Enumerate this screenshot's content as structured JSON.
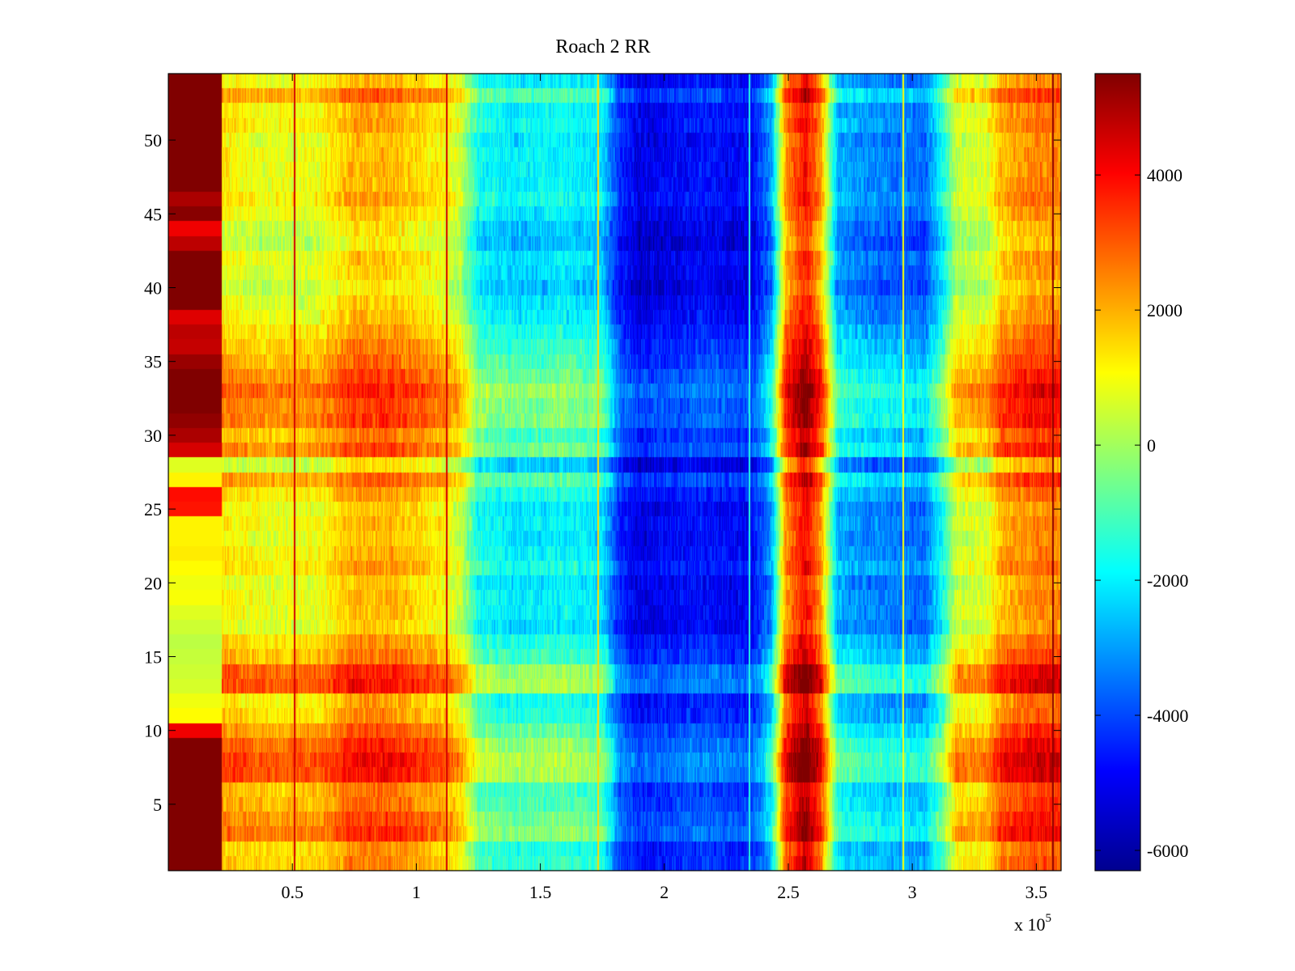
{
  "chart_data": {
    "type": "heatmap",
    "title": "Roach 2 RR",
    "colormap": "jet",
    "x_range": [
      0,
      360000
    ],
    "y_range": [
      0.5,
      54.5
    ],
    "x_ticks": [
      {
        "value": 50000,
        "label": "0.5"
      },
      {
        "value": 100000,
        "label": "1"
      },
      {
        "value": 150000,
        "label": "1.5"
      },
      {
        "value": 200000,
        "label": "2"
      },
      {
        "value": 250000,
        "label": "2.5"
      },
      {
        "value": 300000,
        "label": "3"
      },
      {
        "value": 350000,
        "label": "3.5"
      }
    ],
    "x_multiplier": {
      "base": "x 10",
      "exponent": "5"
    },
    "y_ticks": [
      {
        "value": 5,
        "label": "5"
      },
      {
        "value": 10,
        "label": "10"
      },
      {
        "value": 15,
        "label": "15"
      },
      {
        "value": 20,
        "label": "20"
      },
      {
        "value": 25,
        "label": "25"
      },
      {
        "value": 30,
        "label": "30"
      },
      {
        "value": 35,
        "label": "35"
      },
      {
        "value": 40,
        "label": "40"
      },
      {
        "value": 45,
        "label": "45"
      },
      {
        "value": 50,
        "label": "50"
      }
    ],
    "colorbar": {
      "range": [
        -6300,
        5500
      ],
      "ticks": [
        {
          "value": 4000,
          "label": "4000"
        },
        {
          "value": 2000,
          "label": "2000"
        },
        {
          "value": 0,
          "label": "0"
        },
        {
          "value": -2000,
          "label": "-2000"
        },
        {
          "value": -4000,
          "label": "-4000"
        },
        {
          "value": -6000,
          "label": "-6000"
        }
      ]
    },
    "rows": 54,
    "column_profile": [
      {
        "x": 0,
        "value": 6000
      },
      {
        "x": 21000,
        "value": 6000
      },
      {
        "x": 21500,
        "value": 1400
      },
      {
        "x": 40000,
        "value": 1000
      },
      {
        "x": 60000,
        "value": 1100
      },
      {
        "x": 75000,
        "value": 2100
      },
      {
        "x": 90000,
        "value": 2100
      },
      {
        "x": 110000,
        "value": 1300
      },
      {
        "x": 118000,
        "value": 600
      },
      {
        "x": 125000,
        "value": -1500
      },
      {
        "x": 140000,
        "value": -1900
      },
      {
        "x": 160000,
        "value": -1700
      },
      {
        "x": 175000,
        "value": -2000
      },
      {
        "x": 182000,
        "value": -4300
      },
      {
        "x": 190000,
        "value": -5000
      },
      {
        "x": 215000,
        "value": -4500
      },
      {
        "x": 235000,
        "value": -4800
      },
      {
        "x": 243000,
        "value": -3000
      },
      {
        "x": 249000,
        "value": 2500
      },
      {
        "x": 257000,
        "value": 4200
      },
      {
        "x": 263000,
        "value": 2500
      },
      {
        "x": 270000,
        "value": -2600
      },
      {
        "x": 285000,
        "value": -3100
      },
      {
        "x": 305000,
        "value": -3400
      },
      {
        "x": 312000,
        "value": -1600
      },
      {
        "x": 318000,
        "value": 700
      },
      {
        "x": 330000,
        "value": 800
      },
      {
        "x": 336000,
        "value": 2100
      },
      {
        "x": 350000,
        "value": 2700
      },
      {
        "x": 360000,
        "value": 2600
      }
    ],
    "row_offsets": [
      500,
      300,
      1500,
      1200,
      800,
      600,
      1900,
      2000,
      1600,
      1000,
      300,
      100,
      1900,
      1700,
      600,
      300,
      -400,
      -200,
      -200,
      -400,
      200,
      -100,
      -300,
      -100,
      -300,
      200,
      900,
      -700,
      1200,
      600,
      1400,
      1300,
      1700,
      1200,
      800,
      500,
      200,
      -200,
      -400,
      -800,
      -500,
      -300,
      -900,
      -700,
      -300,
      100,
      -200,
      -200,
      -200,
      -300,
      100,
      -100,
      900,
      -200
    ],
    "left_band_values": [
      6000,
      6000,
      6000,
      6000,
      6000,
      6000,
      6000,
      6000,
      6000,
      4200,
      1100,
      900,
      600,
      500,
      400,
      300,
      500,
      700,
      1000,
      900,
      1100,
      1300,
      1200,
      1200,
      3800,
      3900,
      1200,
      700,
      4500,
      5000,
      5300,
      5600,
      5600,
      5600,
      5200,
      4700,
      4800,
      4400,
      5600,
      5600,
      5600,
      5600,
      4800,
      4200,
      5400,
      5000,
      5600,
      5600,
      5600,
      5600,
      5600,
      5600,
      5600,
      5600
    ],
    "right_edge_column": [
      {
        "label": "1",
        "value": 4800
      },
      {
        "label": "11",
        "value": 5200
      }
    ],
    "vertical_lines": [
      {
        "x": 50500,
        "value": 4500
      },
      {
        "x": 112000,
        "value": 4500
      },
      {
        "x": 173000,
        "value": 1500
      },
      {
        "x": 234000,
        "value": -1500
      },
      {
        "x": 296000,
        "value": 1000
      },
      {
        "x": 356500,
        "value": 5300
      }
    ]
  }
}
